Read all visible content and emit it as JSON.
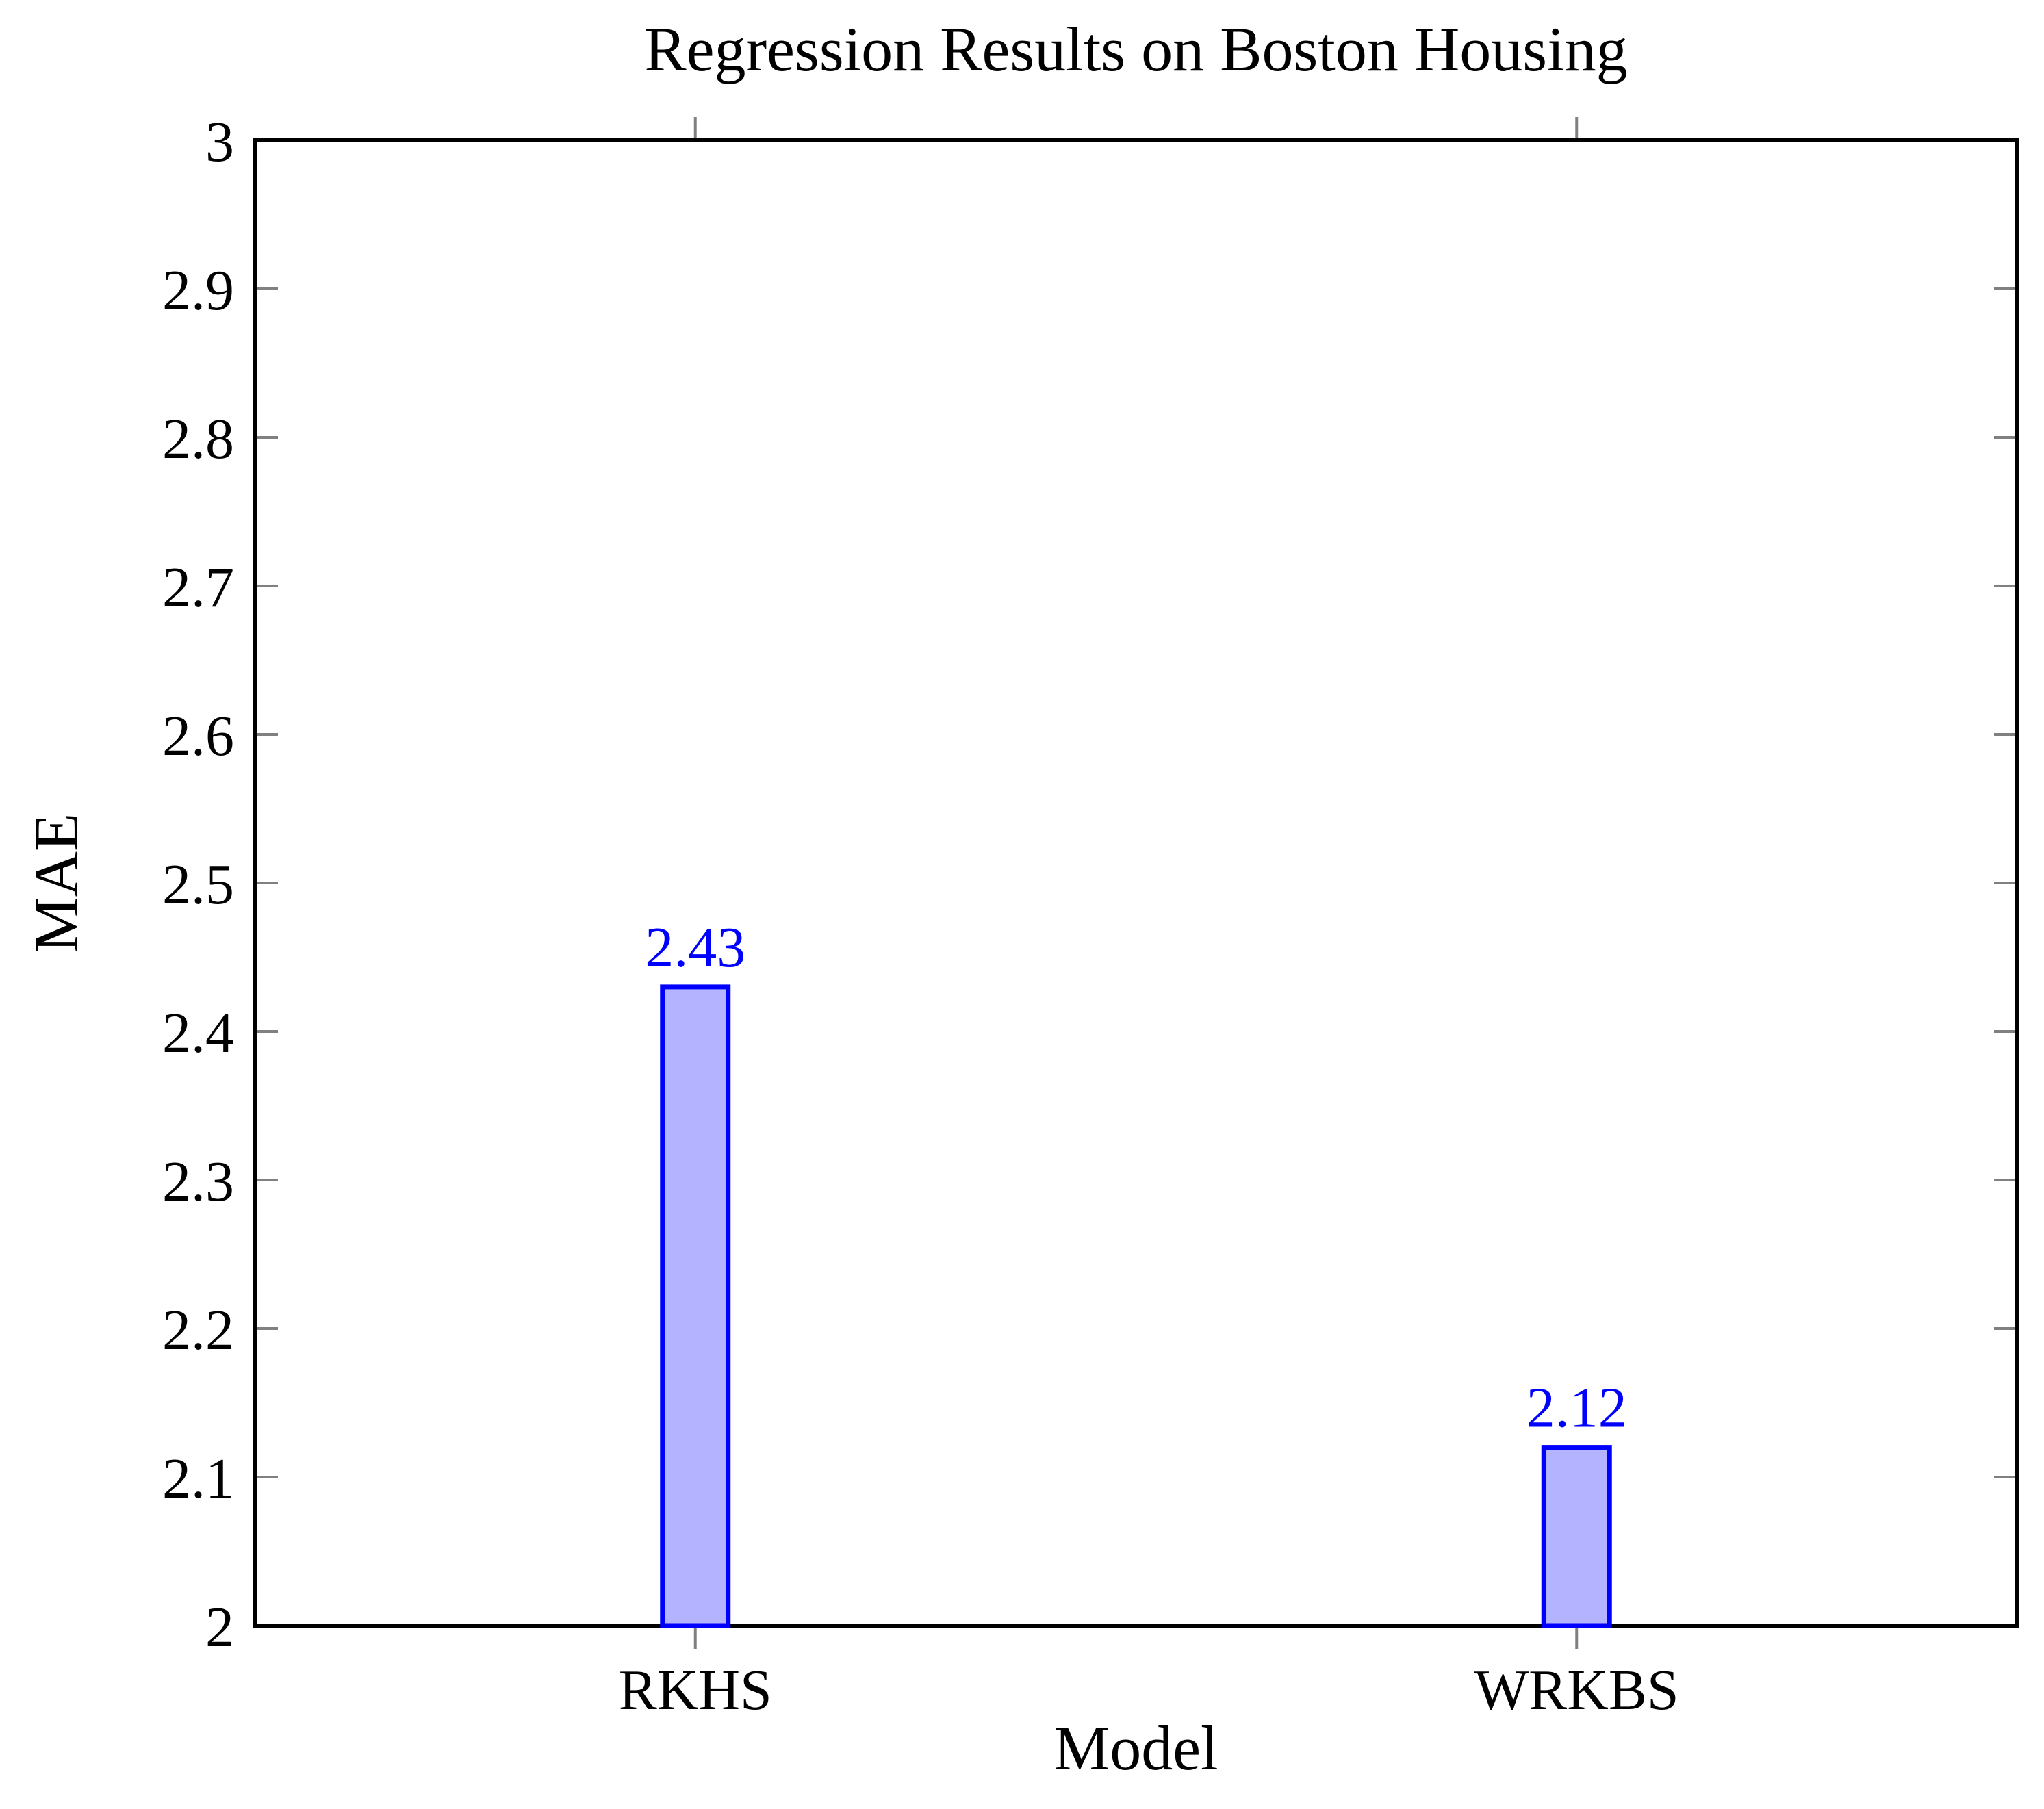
{
  "chart_data": {
    "type": "bar",
    "title": "Regression Results on Boston Housing",
    "xlabel": "Model",
    "ylabel": "MAE",
    "categories": [
      "RKHS",
      "WRKBS"
    ],
    "values": [
      2.43,
      2.12
    ],
    "bar_value_labels": [
      "2.43",
      "2.12"
    ],
    "ylim": [
      2,
      3
    ],
    "yticks": [
      2,
      2.1,
      2.2,
      2.3,
      2.4,
      2.5,
      2.6,
      2.7,
      2.8,
      2.9,
      3
    ],
    "ytick_labels": [
      "2",
      "2.1",
      "2.2",
      "2.3",
      "2.4",
      "2.5",
      "2.6",
      "2.7",
      "2.8",
      "2.9",
      "3"
    ],
    "grid": false,
    "legend_position": "none",
    "colors": {
      "bar_fill": "#b3b3ff",
      "bar_border": "#0000ff",
      "value_label": "#0000ff",
      "tick_mark": "#808080",
      "axis_frame": "#000000",
      "text": "#000000",
      "background": "#ffffff"
    }
  }
}
